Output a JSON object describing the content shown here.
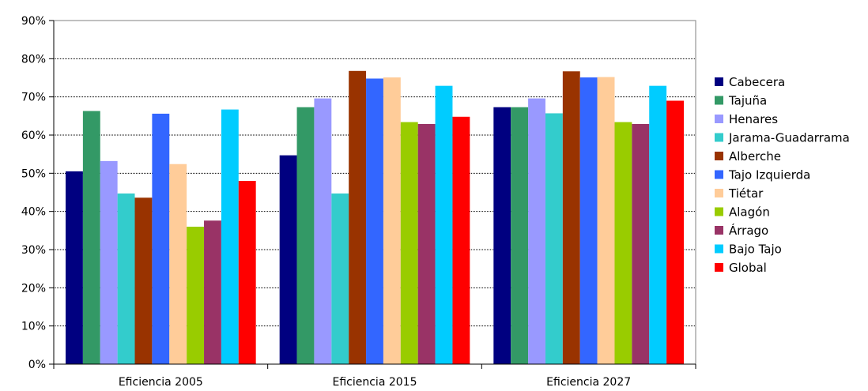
{
  "chart_data": {
    "type": "bar",
    "categories": [
      "Eficiencia 2005",
      "Eficiencia 2015",
      "Eficiencia 2027"
    ],
    "y_ticks": [
      "0%",
      "10%",
      "20%",
      "30%",
      "40%",
      "50%",
      "60%",
      "70%",
      "80%",
      "90%"
    ],
    "ylim": [
      0,
      90
    ],
    "grid": true,
    "legend_position": "right",
    "series": [
      {
        "name": "Cabecera",
        "color": "#000080",
        "values": [
          50.5,
          54.7,
          67.3
        ]
      },
      {
        "name": "Tajuña",
        "color": "#339966",
        "values": [
          66.3,
          67.3,
          67.3
        ]
      },
      {
        "name": "Henares",
        "color": "#9999FF",
        "values": [
          53.2,
          69.6,
          69.6
        ]
      },
      {
        "name": "Jarama-Guadarrama",
        "color": "#33CCCC",
        "values": [
          44.7,
          44.7,
          65.7
        ]
      },
      {
        "name": "Alberche",
        "color": "#993300",
        "values": [
          43.6,
          76.8,
          76.7
        ]
      },
      {
        "name": "Tajo Izquierda",
        "color": "#3366FF",
        "values": [
          65.6,
          74.8,
          75.1
        ]
      },
      {
        "name": "Tiétar",
        "color": "#FFCC99",
        "values": [
          52.4,
          75.1,
          75.2
        ]
      },
      {
        "name": "Alagón",
        "color": "#99CC00",
        "values": [
          36.0,
          63.4,
          63.4
        ]
      },
      {
        "name": "Árrago",
        "color": "#993366",
        "values": [
          37.6,
          62.9,
          62.9
        ]
      },
      {
        "name": "Bajo Tajo",
        "color": "#00CCFF",
        "values": [
          66.7,
          72.9,
          72.9
        ]
      },
      {
        "name": "Global",
        "color": "#FF0000",
        "values": [
          48.0,
          64.8,
          69.0
        ]
      }
    ]
  }
}
